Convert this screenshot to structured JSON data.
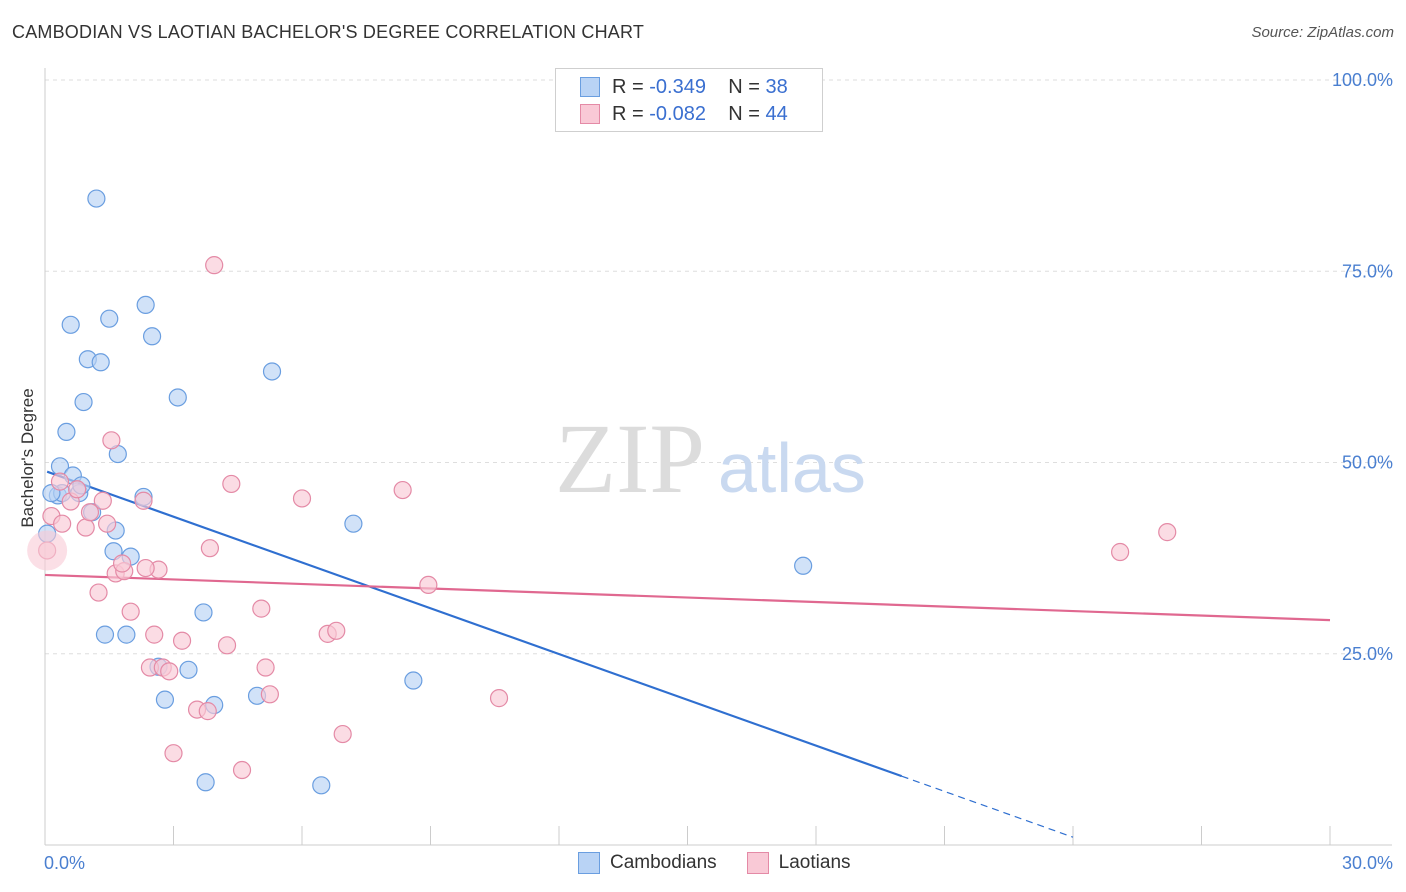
{
  "header": {
    "title": "CAMBODIAN VS LAOTIAN BACHELOR'S DEGREE CORRELATION CHART",
    "source": "Source: ZipAtlas.com"
  },
  "watermark": {
    "zip": "ZIP",
    "atlas": "atlas"
  },
  "legend": {
    "rows": [
      {
        "r_label": "R =",
        "r_value": "-0.349",
        "n_label": "N =",
        "n_value": "38",
        "fill": "#b9d3f5",
        "stroke": "#6a9ee0"
      },
      {
        "r_label": "R =",
        "r_value": "-0.082",
        "n_label": "N =",
        "n_value": "44",
        "fill": "#f9c9d6",
        "stroke": "#e48aa6"
      }
    ]
  },
  "bottom_legend": [
    {
      "label": "Cambodians",
      "fill": "#b9d3f5",
      "stroke": "#6a9ee0"
    },
    {
      "label": "Laotians",
      "fill": "#f9c9d6",
      "stroke": "#e48aa6"
    }
  ],
  "chart_data": {
    "type": "scatter",
    "title": "CAMBODIAN VS LAOTIAN BACHELOR'S DEGREE CORRELATION CHART",
    "xlabel": "",
    "ylabel": "Bachelor's Degree",
    "xlim": [
      0,
      30
    ],
    "ylim": [
      0,
      100
    ],
    "x_tick_labels": [
      "0.0%",
      "30.0%"
    ],
    "y_ticks": [
      25,
      50,
      75,
      100
    ],
    "y_tick_labels": [
      "25.0%",
      "50.0%",
      "75.0%",
      "100.0%"
    ],
    "grid": true,
    "legend_position": "top-center",
    "series": [
      {
        "name": "Cambodians",
        "color": "#6a9ee0",
        "fill": "#b9d3f5",
        "line_color": "#2f6fd0",
        "r": -0.349,
        "n": 38,
        "trend": {
          "x0": 0.05,
          "y0": 48.8,
          "x1": 20.0,
          "y1": 9.0,
          "dash_to_x": 24.0
        },
        "points": [
          [
            0.05,
            40.7
          ],
          [
            0.3,
            45.7
          ],
          [
            0.35,
            49.5
          ],
          [
            0.4,
            46.0
          ],
          [
            0.5,
            54.0
          ],
          [
            0.6,
            68.0
          ],
          [
            0.65,
            48.3
          ],
          [
            0.8,
            46.0
          ],
          [
            0.85,
            47.0
          ],
          [
            0.9,
            57.9
          ],
          [
            1.0,
            63.5
          ],
          [
            1.1,
            43.5
          ],
          [
            1.2,
            84.5
          ],
          [
            1.3,
            63.1
          ],
          [
            1.4,
            27.5
          ],
          [
            1.5,
            68.8
          ],
          [
            1.6,
            38.4
          ],
          [
            1.65,
            41.1
          ],
          [
            1.7,
            51.1
          ],
          [
            1.9,
            27.5
          ],
          [
            2.0,
            37.7
          ],
          [
            2.3,
            45.5
          ],
          [
            2.35,
            70.6
          ],
          [
            2.5,
            66.5
          ],
          [
            2.65,
            23.3
          ],
          [
            2.8,
            19.0
          ],
          [
            3.1,
            58.5
          ],
          [
            3.35,
            22.9
          ],
          [
            3.7,
            30.4
          ],
          [
            3.75,
            8.2
          ],
          [
            3.95,
            18.3
          ],
          [
            4.95,
            19.5
          ],
          [
            5.3,
            61.9
          ],
          [
            6.45,
            7.8
          ],
          [
            7.2,
            42.0
          ],
          [
            8.6,
            21.5
          ],
          [
            17.7,
            36.5
          ],
          [
            0.15,
            46.0
          ]
        ]
      },
      {
        "name": "Laotians",
        "color": "#e48aa6",
        "fill": "#f9c9d6",
        "line_color": "#e06890",
        "r": -0.082,
        "n": 44,
        "trend": {
          "x0": 0.0,
          "y0": 35.3,
          "x1": 30.0,
          "y1": 29.4
        },
        "points": [
          [
            0.05,
            38.5
          ],
          [
            0.15,
            43.0
          ],
          [
            0.35,
            47.5
          ],
          [
            0.4,
            42.0
          ],
          [
            0.6,
            44.9
          ],
          [
            0.75,
            46.5
          ],
          [
            0.95,
            41.5
          ],
          [
            1.05,
            43.5
          ],
          [
            1.25,
            33.0
          ],
          [
            1.35,
            45.0
          ],
          [
            1.45,
            42.0
          ],
          [
            1.55,
            52.9
          ],
          [
            1.65,
            35.5
          ],
          [
            1.85,
            35.8
          ],
          [
            2.0,
            30.5
          ],
          [
            2.3,
            45.0
          ],
          [
            2.45,
            23.2
          ],
          [
            2.55,
            27.5
          ],
          [
            2.65,
            36.0
          ],
          [
            2.75,
            23.2
          ],
          [
            2.9,
            22.7
          ],
          [
            3.0,
            12.0
          ],
          [
            3.2,
            26.7
          ],
          [
            3.55,
            17.7
          ],
          [
            3.8,
            17.5
          ],
          [
            3.85,
            38.8
          ],
          [
            3.95,
            75.8
          ],
          [
            4.25,
            26.1
          ],
          [
            4.35,
            47.2
          ],
          [
            4.6,
            9.8
          ],
          [
            5.05,
            30.9
          ],
          [
            5.15,
            23.2
          ],
          [
            5.25,
            19.7
          ],
          [
            6.0,
            45.3
          ],
          [
            6.6,
            27.6
          ],
          [
            6.8,
            28.0
          ],
          [
            6.95,
            14.5
          ],
          [
            8.35,
            46.4
          ],
          [
            8.95,
            34.0
          ],
          [
            10.6,
            19.2
          ],
          [
            25.1,
            38.3
          ],
          [
            26.2,
            40.9
          ],
          [
            1.8,
            36.8
          ],
          [
            2.35,
            36.2
          ]
        ]
      }
    ]
  }
}
